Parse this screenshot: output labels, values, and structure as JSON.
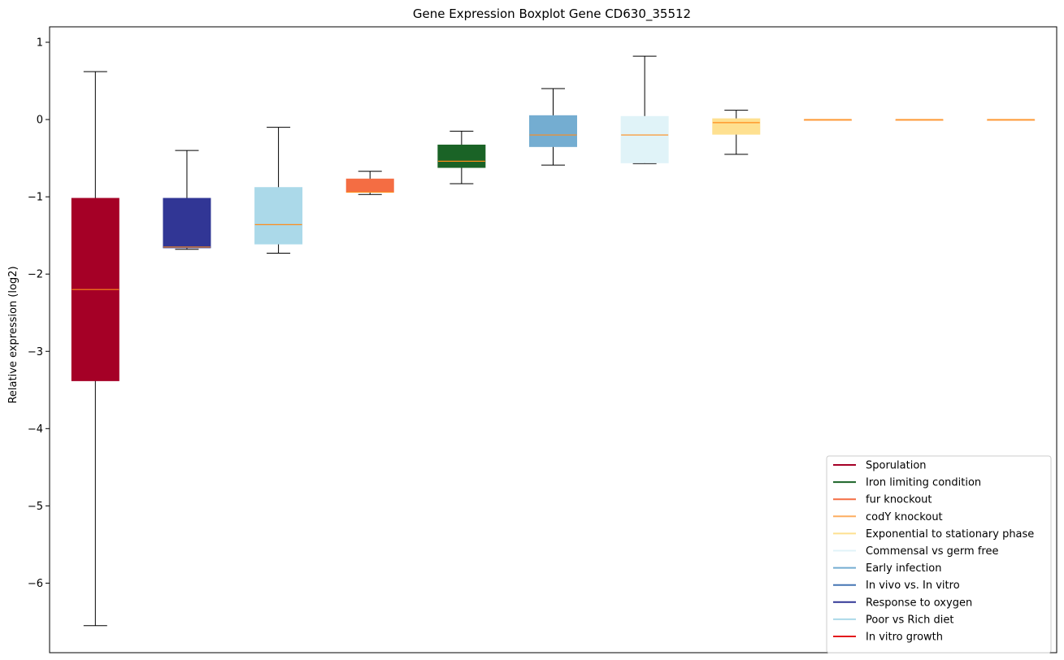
{
  "chart_data": {
    "type": "box",
    "title": "Gene Expression Boxplot Gene CD630_35512",
    "xlabel": "",
    "ylabel": "Relative expression (log2)",
    "ylim": [
      -6.9,
      1.2
    ],
    "yticks": [
      1,
      0,
      -1,
      -2,
      -3,
      -4,
      -5,
      -6
    ],
    "ytick_labels": [
      "1",
      "0",
      "−1",
      "−2",
      "−3",
      "−4",
      "−5",
      "−6"
    ],
    "grid": false,
    "median_color": "#ff8c1a",
    "boxes": [
      {
        "color": "#a50026",
        "whisker_low": -6.55,
        "q1": -3.38,
        "median": -2.2,
        "q3": -1.02,
        "whisker_high": 0.62
      },
      {
        "color": "#313695",
        "whisker_low": -1.68,
        "q1": -1.66,
        "median": -1.65,
        "q3": -1.02,
        "whisker_high": -0.4
      },
      {
        "color": "#abd9e9",
        "whisker_low": -1.73,
        "q1": -1.61,
        "median": -1.36,
        "q3": -0.88,
        "whisker_high": -0.1
      },
      {
        "color": "#f46d43",
        "whisker_low": -0.97,
        "q1": -0.94,
        "median": -0.94,
        "q3": -0.77,
        "whisker_high": -0.67
      },
      {
        "color": "#1a6326",
        "whisker_low": -0.83,
        "q1": -0.62,
        "median": -0.54,
        "q3": -0.33,
        "whisker_high": -0.15
      },
      {
        "color": "#74add1",
        "whisker_low": -0.59,
        "q1": -0.35,
        "median": -0.2,
        "q3": 0.05,
        "whisker_high": 0.4
      },
      {
        "color": "#e0f3f8",
        "whisker_low": -0.57,
        "q1": -0.56,
        "median": -0.2,
        "q3": 0.04,
        "whisker_high": 0.82
      },
      {
        "color": "#fee090",
        "whisker_low": -0.45,
        "q1": -0.19,
        "median": -0.04,
        "q3": 0.01,
        "whisker_high": 0.12
      },
      {
        "color": "#fdae61",
        "whisker_low": 0.0,
        "q1": 0.0,
        "median": 0.0,
        "q3": 0.0,
        "whisker_high": 0.0
      },
      {
        "color": "#fdae61",
        "whisker_low": 0.0,
        "q1": 0.0,
        "median": 0.0,
        "q3": 0.0,
        "whisker_high": 0.0
      },
      {
        "color": "#fdae61",
        "whisker_low": 0.0,
        "q1": 0.0,
        "median": 0.0,
        "q3": 0.0,
        "whisker_high": 0.0
      }
    ],
    "legend": {
      "placement": "lower-right",
      "entries": [
        {
          "label": "Sporulation",
          "color": "#a50026"
        },
        {
          "label": "Iron limiting condition",
          "color": "#1a6326"
        },
        {
          "label": "fur knockout",
          "color": "#f46d43"
        },
        {
          "label": "codY knockout",
          "color": "#fdae61"
        },
        {
          "label": "Exponential to stationary phase",
          "color": "#fee090"
        },
        {
          "label": "Commensal vs germ free",
          "color": "#e0f3f8"
        },
        {
          "label": "Early infection",
          "color": "#74add1"
        },
        {
          "label": "In vivo vs. In vitro",
          "color": "#4575b4"
        },
        {
          "label": "Response to oxygen",
          "color": "#313695"
        },
        {
          "label": "Poor vs Rich diet",
          "color": "#abd9e9"
        },
        {
          "label": "In vitro growth",
          "color": "#e31a1c"
        }
      ]
    }
  }
}
